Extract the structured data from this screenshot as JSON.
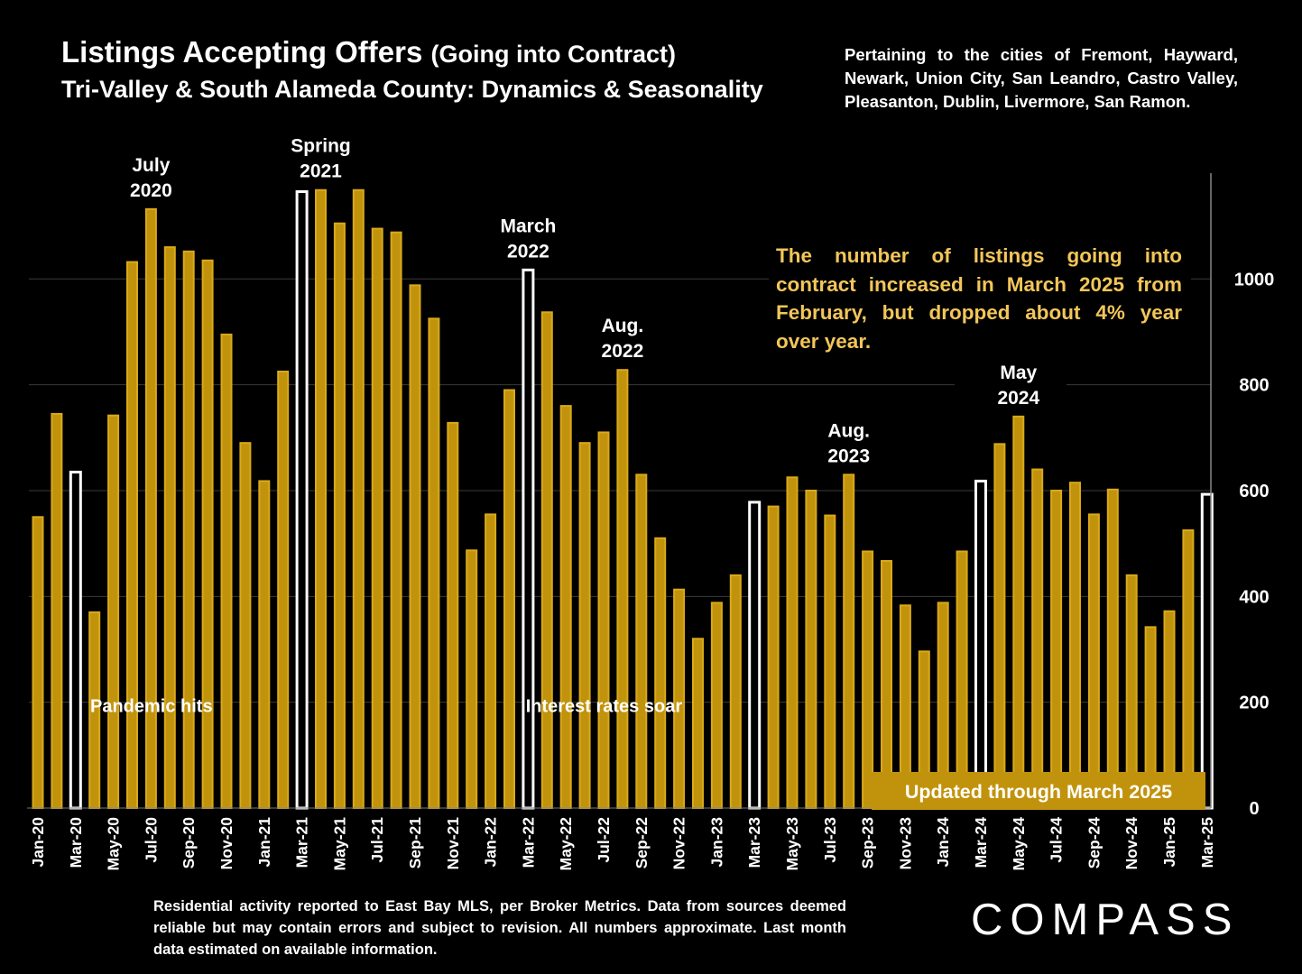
{
  "header": {
    "title_main": "Listings Accepting Offers",
    "title_paren": "(Going into Contract)",
    "subtitle": "Tri-Valley & South Alameda County: Dynamics & Seasonality",
    "cities_note": "Pertaining to the cities of Fremont, Hayward, Newark, Union City, San Leandro, Castro Valley, Pleasanton, Dublin, Livermore, San Ramon."
  },
  "callout": "The number of listings going into contract increased in March 2025 from February, but dropped about 4% year over year.",
  "footnote": "Residential activity reported to East Bay MLS, per Broker Metrics. Data from sources deemed reliable but may contain errors and subject to revision.  All numbers approximate. Last month data estimated on available information.",
  "logo": "COMPASS",
  "updated_badge": "Updated through March 2025",
  "colors": {
    "bar": "#c1930d",
    "bar_border": "#d9a919",
    "highlight": "#ffffff",
    "callout_text": "#f3c659",
    "grid": "#3a3a3a",
    "background": "#000000"
  },
  "chart_data": {
    "type": "bar",
    "x": [
      "Jan-20",
      "Feb-20",
      "Mar-20",
      "Apr-20",
      "May-20",
      "Jun-20",
      "Jul-20",
      "Aug-20",
      "Sep-20",
      "Oct-20",
      "Nov-20",
      "Dec-20",
      "Jan-21",
      "Feb-21",
      "Mar-21",
      "Apr-21",
      "May-21",
      "Jun-21",
      "Jul-21",
      "Aug-21",
      "Sep-21",
      "Oct-21",
      "Nov-21",
      "Dec-21",
      "Jan-22",
      "Feb-22",
      "Mar-22",
      "Apr-22",
      "May-22",
      "Jun-22",
      "Jul-22",
      "Aug-22",
      "Sep-22",
      "Oct-22",
      "Nov-22",
      "Dec-22",
      "Jan-23",
      "Feb-23",
      "Mar-23",
      "Apr-23",
      "May-23",
      "Jun-23",
      "Jul-23",
      "Aug-23",
      "Sep-23",
      "Oct-23",
      "Nov-23",
      "Dec-23",
      "Jan-24",
      "Feb-24",
      "Mar-24",
      "Apr-24",
      "May-24",
      "Jun-24",
      "Jul-24",
      "Aug-24",
      "Sep-24",
      "Oct-24",
      "Nov-24",
      "Dec-24",
      "Jan-25",
      "Feb-25",
      "Mar-25"
    ],
    "tick_labels": [
      "Jan-20",
      "Mar-20",
      "May-20",
      "Jul-20",
      "Sep-20",
      "Nov-20",
      "Jan-21",
      "Mar-21",
      "May-21",
      "Jul-21",
      "Sep-21",
      "Nov-21",
      "Jan-22",
      "Mar-22",
      "May-22",
      "Jul-22",
      "Sep-22",
      "Nov-22",
      "Jan-23",
      "Mar-23",
      "May-23",
      "Jul-23",
      "Sep-23",
      "Nov-23",
      "Jan-24",
      "Mar-24",
      "May-24",
      "Jul-24",
      "Sep-24",
      "Nov-24",
      "Jan-25",
      "Mar-25"
    ],
    "values": [
      550,
      745,
      635,
      370,
      742,
      1032,
      1132,
      1060,
      1052,
      1035,
      895,
      690,
      618,
      825,
      1165,
      1168,
      1105,
      1168,
      1095,
      1088,
      988,
      925,
      728,
      487,
      555,
      790,
      1017,
      937,
      760,
      690,
      710,
      828,
      630,
      510,
      413,
      320,
      388,
      440,
      578,
      570,
      625,
      600,
      553,
      630,
      485,
      467,
      383,
      296,
      388,
      485,
      618,
      688,
      740,
      640,
      600,
      615,
      555,
      602,
      440,
      342,
      372,
      525,
      593
    ],
    "highlighted": [
      "Mar-20",
      "Mar-21",
      "Mar-22",
      "Mar-23",
      "Mar-24",
      "Mar-25"
    ],
    "y_ticks": [
      0,
      200,
      400,
      600,
      800,
      1000
    ],
    "ylim": [
      0,
      1200
    ],
    "y_axis_side": "right",
    "grid": true,
    "annotations": [
      {
        "label": "July\n2020",
        "at": "Jul-20"
      },
      {
        "label": "Spring\n2021",
        "at": "Apr-21"
      },
      {
        "label": "March\n2022",
        "at": "Mar-22"
      },
      {
        "label": "Aug.\n2022",
        "at": "Aug-22"
      },
      {
        "label": "Aug.\n2023",
        "at": "Aug-23"
      },
      {
        "label": "May\n2024",
        "at": "May-24"
      }
    ],
    "event_labels": [
      {
        "label": "Pandemic hits",
        "at": "Mar-20",
        "y": 190
      },
      {
        "label": "Interest rates soar",
        "at": "Mar-22",
        "y": 190
      }
    ]
  }
}
